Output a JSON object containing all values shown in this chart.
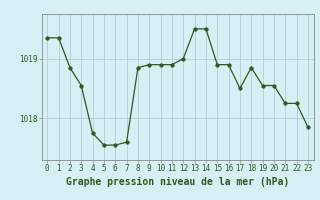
{
  "x": [
    0,
    1,
    2,
    3,
    4,
    5,
    6,
    7,
    8,
    9,
    10,
    11,
    12,
    13,
    14,
    15,
    16,
    17,
    18,
    19,
    20,
    21,
    22,
    23
  ],
  "y": [
    1019.35,
    1019.35,
    1018.85,
    1018.55,
    1017.75,
    1017.55,
    1017.55,
    1017.6,
    1018.85,
    1018.9,
    1018.9,
    1018.9,
    1019.0,
    1019.5,
    1019.5,
    1018.9,
    1018.9,
    1018.5,
    1018.85,
    1018.55,
    1018.55,
    1018.25,
    1018.25,
    1017.85
  ],
  "line_color": "#2d5a1b",
  "marker": "o",
  "marker_size": 2.5,
  "background_color": "#d6eff5",
  "grid_color": "#b0c8cc",
  "xlabel": "Graphe pression niveau de la mer (hPa)",
  "xlabel_fontsize": 7,
  "xlabel_color": "#2d5a1b",
  "tick_label_color": "#2d5a1b",
  "tick_label_fontsize": 5.5,
  "ytick_labels": [
    "1018",
    "1019"
  ],
  "ytick_values": [
    1018.0,
    1019.0
  ],
  "ylim": [
    1017.3,
    1019.75
  ],
  "xlim": [
    -0.5,
    23.5
  ]
}
